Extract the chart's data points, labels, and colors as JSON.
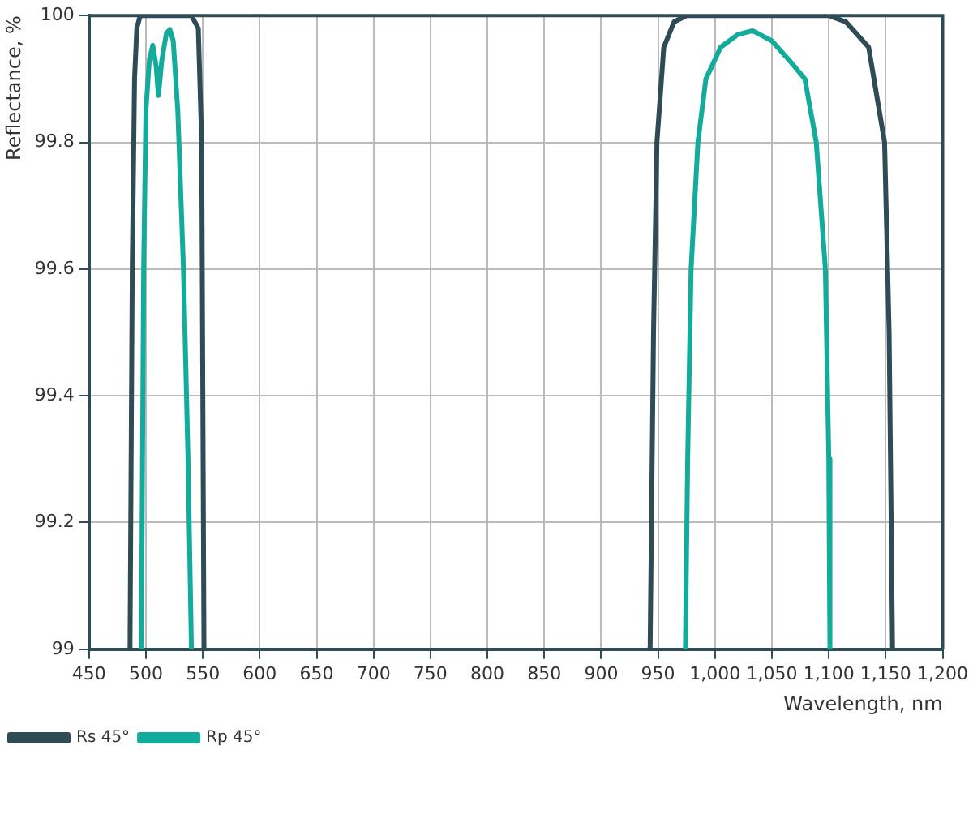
{
  "chart_data": {
    "type": "line",
    "xlabel": "Wavelength, nm",
    "ylabel": "Reflectance, %",
    "xlim": [
      450,
      1200
    ],
    "xticks": [
      450,
      500,
      550,
      600,
      650,
      700,
      750,
      800,
      850,
      900,
      950,
      {
        "value": 1000,
        "label": "1,000"
      },
      {
        "value": 1050,
        "label": "1,050"
      },
      {
        "value": 1100,
        "label": "1,100"
      },
      {
        "value": 1150,
        "label": "1,150"
      },
      {
        "value": 1200,
        "label": "1,200"
      }
    ],
    "ylim": [
      99,
      100
    ],
    "yticks": [
      99,
      99.2,
      99.4,
      99.6,
      99.8,
      100
    ],
    "grid": true,
    "legend": "bottom left",
    "marker": "none",
    "line_style": "solid",
    "series": [
      {
        "name": "Rs 45°",
        "color": "#2f4b55",
        "x": [
          486,
          488,
          490,
          492,
          495,
          540,
          546,
          549,
          551,
          750,
          943,
          946,
          949,
          955,
          964,
          975,
          1100,
          1115,
          1135,
          1149,
          1153,
          1156
        ],
        "values": [
          99,
          99.6,
          99.9,
          99.98,
          100,
          100,
          99.98,
          99.8,
          99,
          null,
          99,
          99.5,
          99.8,
          99.95,
          99.99,
          100,
          100,
          99.99,
          99.95,
          99.8,
          99.5,
          99
        ]
      },
      {
        "name": "Rp 45°",
        "color": "#13ab9b",
        "x": [
          496,
          498,
          500,
          503,
          506,
          509,
          511,
          514,
          518,
          521,
          524,
          528,
          533,
          537,
          540,
          750,
          974,
          976,
          979,
          985,
          992,
          1005,
          1020,
          1033,
          1050,
          1065,
          1079,
          1089,
          1097,
          1100,
          1101
        ],
        "values": [
          99,
          99.6,
          99.85,
          99.93,
          99.953,
          99.92,
          99.874,
          99.93,
          99.972,
          99.978,
          99.96,
          99.85,
          99.6,
          99.3,
          99,
          null,
          99,
          99.3,
          99.6,
          99.8,
          99.9,
          99.95,
          99.97,
          99.976,
          99.96,
          99.93,
          99.9,
          99.8,
          99.6,
          99.3,
          99
        ]
      }
    ]
  }
}
